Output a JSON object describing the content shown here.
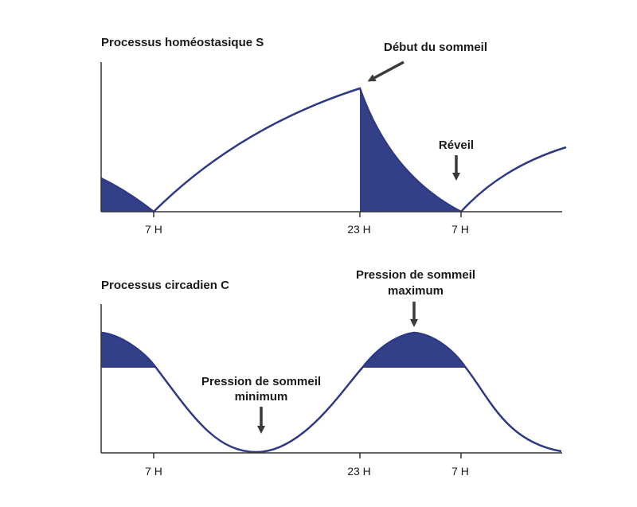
{
  "colors": {
    "curve": "#2f3a86",
    "fill": "#333f86",
    "axis": "#333333",
    "arrow": "#3a3a3a"
  },
  "top": {
    "title": "Processus homéostasique S",
    "ticks": [
      "7 H",
      "23 H",
      "7 H"
    ],
    "annotation_sleep_onset": "Début du sommeil",
    "annotation_wake": "Réveil"
  },
  "bottom": {
    "title": "Processus circadien C",
    "ticks": [
      "7 H",
      "23 H",
      "7 H"
    ],
    "annotation_min_line1": "Pression de sommeil",
    "annotation_min_line2": "minimum",
    "annotation_max_line1": "Pression de sommeil",
    "annotation_max_line2": "maximum"
  }
}
